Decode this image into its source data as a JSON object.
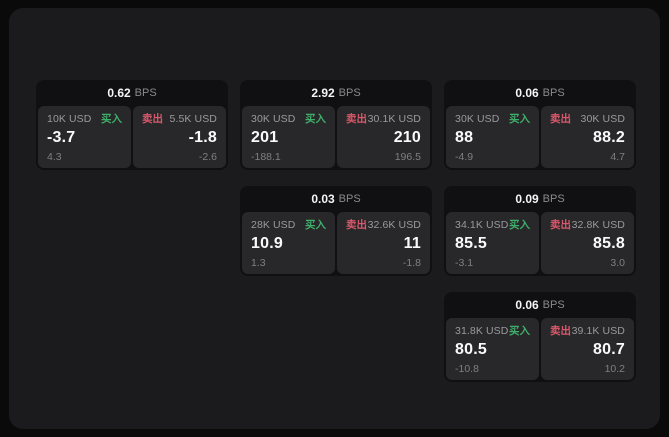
{
  "labels": {
    "bps_suffix": "BPS",
    "buy": "买入",
    "sell": "卖出"
  },
  "colors": {
    "buy_green": "#3fae6a",
    "sell_red": "#d8596b",
    "panel_bg": "#1b1b1d",
    "card_bg": "#101012",
    "tile_bg": "#28282a"
  },
  "cards": [
    {
      "bps": "0.62",
      "buy": {
        "amount": "10K USD",
        "value": "-3.7",
        "delta": "4.3"
      },
      "sell": {
        "amount": "5.5K USD",
        "value": "-1.8",
        "delta": "-2.6"
      }
    },
    {
      "bps": "2.92",
      "buy": {
        "amount": "30K USD",
        "value": "201",
        "delta": "-188.1"
      },
      "sell": {
        "amount": "30.1K USD",
        "value": "210",
        "delta": "196.5"
      }
    },
    {
      "bps": "0.06",
      "buy": {
        "amount": "30K USD",
        "value": "88",
        "delta": "-4.9"
      },
      "sell": {
        "amount": "30K USD",
        "value": "88.2",
        "delta": "4.7"
      }
    },
    {
      "bps": "0.03",
      "buy": {
        "amount": "28K USD",
        "value": "10.9",
        "delta": "1.3"
      },
      "sell": {
        "amount": "32.6K USD",
        "value": "11",
        "delta": "-1.8"
      }
    },
    {
      "bps": "0.09",
      "buy": {
        "amount": "34.1K USD",
        "value": "85.5",
        "delta": "-3.1"
      },
      "sell": {
        "amount": "32.8K USD",
        "value": "85.8",
        "delta": "3.0"
      }
    },
    {
      "bps": "0.06",
      "buy": {
        "amount": "31.8K USD",
        "value": "80.5",
        "delta": "-10.8"
      },
      "sell": {
        "amount": "39.1K USD",
        "value": "80.7",
        "delta": "10.2"
      }
    }
  ]
}
